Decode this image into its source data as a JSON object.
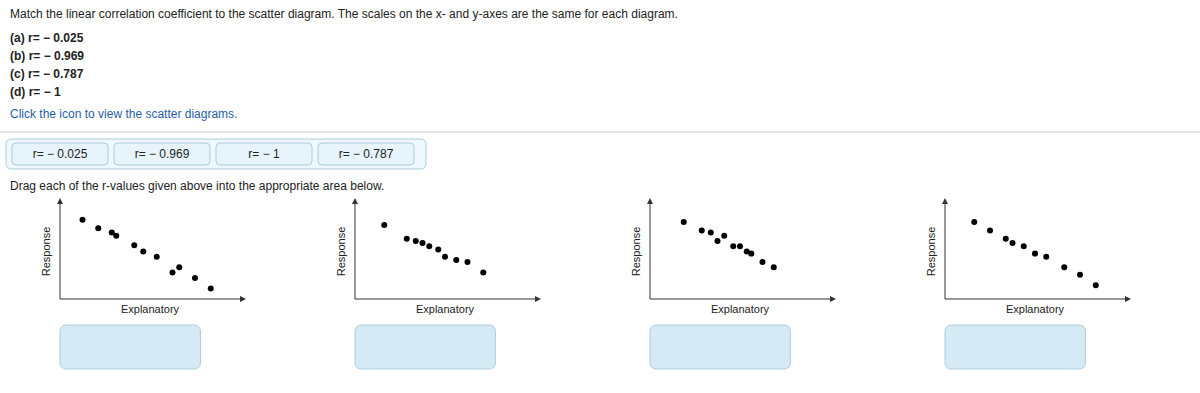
{
  "title": "Match the linear correlation coefficient to the scatter diagram. The scales on the x- and y-axes are the same for each diagram.",
  "annotations": [
    "(a) r= − 0.025",
    "(b) r= − 0.969",
    "(c) r= − 0.787",
    "(d) r= − 1",
    "Click the icon to view the scatter diagrams.",
    "r= − 0.025",
    "r= − 0.969",
    "r= − 1",
    "r= − 0.787",
    "Drag each of the r-values given above into the appropriate area below."
  ],
  "chart_data": [
    {
      "type": "scatter",
      "xlabel": "Explanatory",
      "ylabel": "Response",
      "color": "black",
      "x": [
        0.15,
        0.22,
        0.3,
        0.38,
        0.48,
        0.58,
        0.65,
        0.72,
        0.28,
        0.42,
        0.55
      ],
      "y": [
        0.8,
        0.72,
        0.65,
        0.56,
        0.45,
        0.35,
        0.25,
        0.15,
        0.68,
        0.5,
        0.3
      ],
      "xlim": [
        0.05,
        0.85
      ],
      "ylim": [
        0.05,
        0.95
      ],
      "xticks": [],
      "yticks": [],
      "tick_labels": false,
      "grid": false
    },
    {
      "type": "scatter",
      "xlabel": "Explanatory",
      "ylabel": "Response",
      "color": "black",
      "x": [
        0.18,
        0.28,
        0.35,
        0.42,
        0.5,
        0.55,
        0.62,
        0.32,
        0.45,
        0.38
      ],
      "y": [
        0.75,
        0.62,
        0.58,
        0.52,
        0.42,
        0.4,
        0.3,
        0.6,
        0.45,
        0.55
      ],
      "xlim": [
        0.05,
        0.85
      ],
      "ylim": [
        0.05,
        0.95
      ],
      "xticks": [],
      "yticks": [],
      "tick_labels": false,
      "grid": false
    },
    {
      "type": "scatter",
      "xlabel": "Explanatory",
      "ylabel": "Response",
      "color": "black",
      "x": [
        0.2,
        0.28,
        0.35,
        0.42,
        0.5,
        0.55,
        0.38,
        0.45,
        0.32,
        0.48,
        0.6
      ],
      "y": [
        0.78,
        0.7,
        0.6,
        0.55,
        0.48,
        0.4,
        0.65,
        0.55,
        0.68,
        0.5,
        0.35
      ],
      "xlim": [
        0.05,
        0.85
      ],
      "ylim": [
        0.05,
        0.95
      ],
      "xticks": [],
      "yticks": [],
      "tick_labels": false,
      "grid": false
    },
    {
      "type": "scatter",
      "xlabel": "Explanatory",
      "ylabel": "Response",
      "color": "black",
      "x": [
        0.18,
        0.25,
        0.32,
        0.4,
        0.5,
        0.58,
        0.65,
        0.72,
        0.35,
        0.45
      ],
      "y": [
        0.78,
        0.7,
        0.62,
        0.55,
        0.45,
        0.35,
        0.28,
        0.18,
        0.58,
        0.48
      ],
      "xlim": [
        0.05,
        0.85
      ],
      "ylim": [
        0.05,
        0.95
      ],
      "xticks": [],
      "yticks": [],
      "tick_labels": false,
      "grid": false
    }
  ]
}
